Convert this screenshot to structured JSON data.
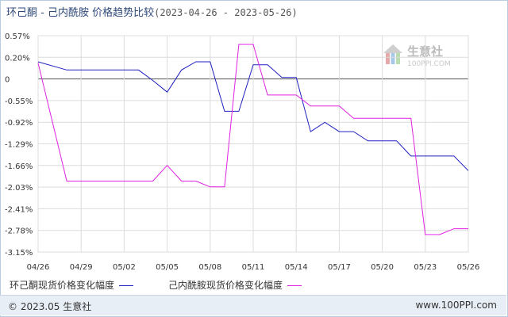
{
  "title": {
    "main": "环己酮 - 己内酰胺 价格趋势比较",
    "range": "(2023-04-26 - 2023-05-26)"
  },
  "footer": {
    "copyright": "© 2023.05 生意社",
    "url": "www.100PPI.com"
  },
  "watermark": {
    "name": "生意社",
    "site": "100PPI.COM"
  },
  "colors": {
    "series1": "#2020c0",
    "series2": "#e020e0",
    "grid": "#dcdcdc",
    "zero_line": "#555555",
    "axis_text": "#333333"
  },
  "chart_data": {
    "type": "line",
    "title": "环己酮 - 己内酰胺 价格趋势比较",
    "xlabel": "",
    "ylabel": "",
    "x_ticks": [
      "04/26",
      "04/29",
      "05/02",
      "05/05",
      "05/08",
      "05/11",
      "05/14",
      "05/17",
      "05/20",
      "05/23",
      "05/26"
    ],
    "y_ticks": [
      "0.57%",
      "0.20%",
      "0",
      "-0.55%",
      "-0.92%",
      "-1.29%",
      "-1.66%",
      "-2.03%",
      "-2.41%",
      "-2.78%",
      "-3.15%"
    ],
    "ylim": [
      -3.15,
      0.57
    ],
    "grid": true,
    "legend_position": "bottom",
    "series": [
      {
        "name": "环己酮现货价格变化幅度",
        "points": [
          [
            "04/26",
            0.12
          ],
          [
            "04/28",
            -0.02
          ],
          [
            "05/03",
            -0.02
          ],
          [
            "05/04",
            -0.2
          ],
          [
            "05/05",
            -0.4
          ],
          [
            "05/06",
            -0.02
          ],
          [
            "05/07",
            0.12
          ],
          [
            "05/08",
            0.12
          ],
          [
            "05/09",
            -0.73
          ],
          [
            "05/10",
            -0.73
          ],
          [
            "05/11",
            0.07
          ],
          [
            "05/12",
            0.07
          ],
          [
            "05/13",
            -0.15
          ],
          [
            "05/14",
            -0.15
          ],
          [
            "05/15",
            -1.08
          ],
          [
            "05/16",
            -0.92
          ],
          [
            "05/17",
            -1.08
          ],
          [
            "05/18",
            -1.08
          ],
          [
            "05/19",
            -1.24
          ],
          [
            "05/21",
            -1.24
          ],
          [
            "05/22",
            -1.5
          ],
          [
            "05/25",
            -1.5
          ],
          [
            "05/26",
            -1.75
          ]
        ]
      },
      {
        "name": "己内酰胺现货价格变化幅度",
        "points": [
          [
            "04/26",
            0.1
          ],
          [
            "04/28",
            -1.93
          ],
          [
            "05/04",
            -1.93
          ],
          [
            "05/05",
            -1.66
          ],
          [
            "05/06",
            -1.93
          ],
          [
            "05/07",
            -1.93
          ],
          [
            "05/08",
            -2.03
          ],
          [
            "05/09",
            -2.03
          ],
          [
            "05/10",
            0.42
          ],
          [
            "05/11",
            0.42
          ],
          [
            "05/12",
            -0.45
          ],
          [
            "05/14",
            -0.45
          ],
          [
            "05/15",
            -0.64
          ],
          [
            "05/17",
            -0.64
          ],
          [
            "05/18",
            -0.85
          ],
          [
            "05/22",
            -0.85
          ],
          [
            "05/23",
            -2.85
          ],
          [
            "05/24",
            -2.85
          ],
          [
            "05/25",
            -2.75
          ],
          [
            "05/26",
            -2.75
          ]
        ]
      }
    ]
  }
}
